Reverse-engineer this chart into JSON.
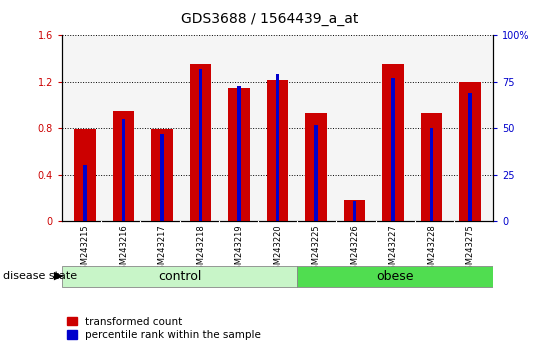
{
  "title": "GDS3688 / 1564439_a_at",
  "samples": [
    "GSM243215",
    "GSM243216",
    "GSM243217",
    "GSM243218",
    "GSM243219",
    "GSM243220",
    "GSM243225",
    "GSM243226",
    "GSM243227",
    "GSM243228",
    "GSM243275"
  ],
  "transformed_count": [
    0.79,
    0.95,
    0.79,
    1.35,
    1.15,
    1.22,
    0.93,
    0.18,
    1.35,
    0.93,
    1.2
  ],
  "percentile_rank": [
    30,
    55,
    47,
    82,
    73,
    79,
    52,
    11,
    77,
    50,
    69
  ],
  "n_control": 6,
  "bar_color_red": "#cc0000",
  "bar_color_blue": "#0000cc",
  "ylim_left": [
    0,
    1.6
  ],
  "ylim_right": [
    0,
    100
  ],
  "yticks_left": [
    0,
    0.4,
    0.8,
    1.2,
    1.6
  ],
  "yticks_right": [
    0,
    25,
    50,
    75,
    100
  ],
  "yticklabels_left": [
    "0",
    "0.4",
    "0.8",
    "1.2",
    "1.6"
  ],
  "yticklabels_right": [
    "0",
    "25",
    "50",
    "75",
    "100%"
  ],
  "background_plot": "#f5f5f5",
  "background_xtick": "#cccccc",
  "legend_red_label": "transformed count",
  "legend_blue_label": "percentile rank within the sample",
  "disease_state_label": "disease state",
  "control_label": "control",
  "obese_label": "obese",
  "control_group_color": "#c8f5c8",
  "obese_group_color": "#50dd50",
  "title_fontsize": 10,
  "tick_fontsize": 7,
  "label_fontsize": 8
}
